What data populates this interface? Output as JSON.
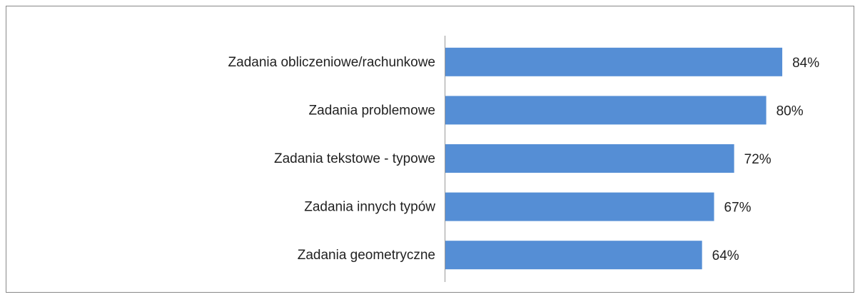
{
  "chart_data": {
    "type": "bar",
    "orientation": "horizontal",
    "categories": [
      "Zadania obliczeniowe/rachunkowe",
      "Zadania problemowe",
      "Zadania tekstowe - typowe",
      "Zadania innych typów",
      "Zadania geometryczne"
    ],
    "values": [
      84,
      80,
      72,
      67,
      64
    ],
    "value_labels": [
      "84%",
      "80%",
      "72%",
      "67%",
      "64%"
    ],
    "color": "#558ed5",
    "xlim": [
      0,
      100
    ]
  }
}
